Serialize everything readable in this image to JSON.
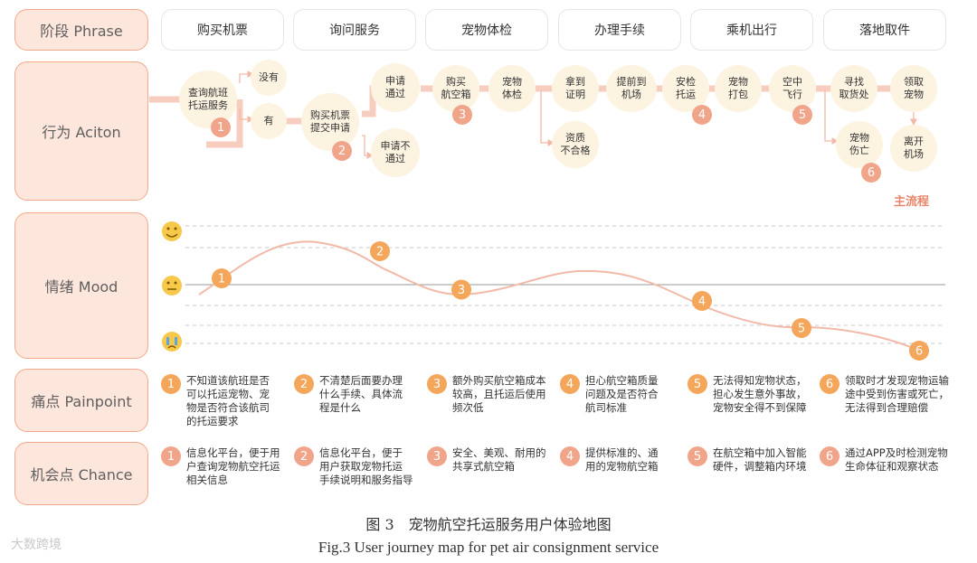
{
  "rows": {
    "phase": "阶段 Phrase",
    "action": "行为 Aciton",
    "mood": "情绪 Mood",
    "pain": "痛点 Painpoint",
    "chance": "机会点 Chance"
  },
  "stages": [
    "购买机票",
    "询问服务",
    "宠物体检",
    "办理手续",
    "乘机出行",
    "落地取件"
  ],
  "actions": {
    "n1": "查询航班\n托运服务",
    "n2": "没有",
    "n3": "有",
    "n4": "购买机票\n提交申请",
    "n5": "申请\n通过",
    "n6": "申请不\n通过",
    "n7": "购买\n航空箱",
    "n8": "宠物\n体检",
    "n9": "拿到\n证明",
    "n10": "资质\n不合格",
    "n11": "提前到\n机场",
    "n12": "安检\n托运",
    "n13": "宠物\n打包",
    "n14": "空中\n飞行",
    "n15": "寻找\n取货处",
    "n16": "领取\n宠物",
    "n17": "宠物\n伤亡",
    "n18": "离开\n机场",
    "main_flow": "主流程"
  },
  "badges": [
    "1",
    "2",
    "3",
    "4",
    "5",
    "6"
  ],
  "mood_points": [
    {
      "label": "1",
      "value": 0.0
    },
    {
      "label": "2",
      "value": 0.6
    },
    {
      "label": "3",
      "value": -0.25
    },
    {
      "label": "4",
      "value": -0.5
    },
    {
      "label": "5",
      "value": -1.1
    },
    {
      "label": "6",
      "value": -1.6
    }
  ],
  "painpoints": [
    {
      "num": "1",
      "text": "不知道该航班是否\n可以托运宠物、宠\n物是否符合该航司\n的托运要求"
    },
    {
      "num": "2",
      "text": "不清楚后面要办理\n什么手续、具体流\n程是什么"
    },
    {
      "num": "3",
      "text": "额外购买航空箱成本\n较高，且托运后使用\n频次低"
    },
    {
      "num": "4",
      "text": "担心航空箱质量\n问题及是否符合\n航司标准"
    },
    {
      "num": "5",
      "text": "无法得知宠物状态，\n担心发生意外事故，\n宠物安全得不到保障"
    },
    {
      "num": "6",
      "text": "领取时才发现宠物运输\n途中受到伤害或死亡，\n无法得到合理赔偿"
    }
  ],
  "chances": [
    {
      "num": "1",
      "text": "信息化平台，便于用\n户查询宠物航空托运\n相关信息"
    },
    {
      "num": "2",
      "text": "信息化平台，便于\n用户获取宠物托运\n手续说明和服务指导"
    },
    {
      "num": "3",
      "text": "安全、美观、耐用的\n共享式航空箱"
    },
    {
      "num": "4",
      "text": "提供标准的、通\n用的宠物航空箱"
    },
    {
      "num": "5",
      "text": "在航空箱中加入智能\n硬件，调整箱内环境"
    },
    {
      "num": "6",
      "text": "通过APP及时检测宠物\n生命体征和观察状态"
    }
  ],
  "caption_cn": "图 3　宠物航空托运服务用户体验地图",
  "caption_en": "Fig.3 User journey map for pet air consignment service",
  "watermark": "大数跨境",
  "colors": {
    "line": "#f2b9a8",
    "node": "#fdf3e1",
    "badge": "#f0a58a",
    "badge_orange": "#f4a65a",
    "label_bg": "#fde6dc"
  }
}
